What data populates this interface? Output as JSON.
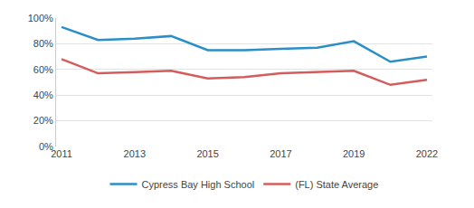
{
  "chart_data": {
    "type": "line",
    "categories": [
      "2011",
      null,
      "2013",
      null,
      "2015",
      null,
      "2017",
      null,
      "2019",
      null,
      "2022"
    ],
    "series": [
      {
        "name": "Cypress Bay High School",
        "color": "#2a8fc8",
        "values": [
          93,
          83,
          84,
          86,
          75,
          75,
          76,
          77,
          82,
          66,
          70
        ]
      },
      {
        "name": "(FL) State Average",
        "color": "#d45c5c",
        "values": [
          68,
          57,
          58,
          59,
          53,
          54,
          57,
          58,
          59,
          48,
          52
        ]
      }
    ],
    "ylim": [
      0,
      100
    ],
    "yticks": [
      {
        "value": 0,
        "label": "0%"
      },
      {
        "value": 20,
        "label": "20%"
      },
      {
        "value": 40,
        "label": "40%"
      },
      {
        "value": 60,
        "label": "60%"
      },
      {
        "value": 80,
        "label": "80%"
      },
      {
        "value": 100,
        "label": "100%"
      }
    ],
    "grid": true,
    "legend": "bottom"
  }
}
